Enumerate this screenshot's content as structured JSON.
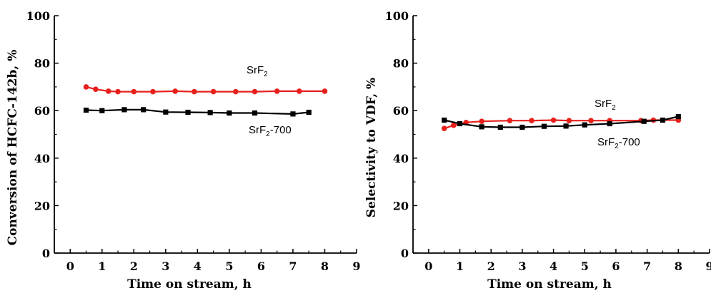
{
  "chart_data": [
    {
      "type": "line",
      "xlabel": "Time on stream, h",
      "ylabel": "Conversion of HCFC-142b, %",
      "xlim": [
        -0.5,
        9
      ],
      "ylim": [
        0,
        100
      ],
      "xticks": [
        "0",
        "1",
        "2",
        "3",
        "4",
        "5",
        "6",
        "7",
        "8",
        "9"
      ],
      "yticks": [
        "0",
        "20",
        "40",
        "60",
        "80",
        "100"
      ],
      "grid": false,
      "series": [
        {
          "name": "SrF2",
          "label_base": "SrF",
          "label_sub": "2",
          "label_tail": "",
          "color": "#e8201c",
          "marker": "circle",
          "x": [
            0.5,
            0.8,
            1.2,
            1.5,
            2.0,
            2.6,
            3.3,
            3.9,
            4.5,
            5.2,
            5.8,
            6.5,
            7.2,
            8.0
          ],
          "y": [
            70.0,
            69.0,
            68.2,
            68.0,
            68.0,
            68.0,
            68.2,
            68.0,
            68.0,
            68.0,
            68.0,
            68.2,
            68.2,
            68.2
          ]
        },
        {
          "name": "SrF2-700",
          "label_base": "SrF",
          "label_sub": "2",
          "label_tail": "-700",
          "color": "#000000",
          "marker": "square",
          "x": [
            0.5,
            1.0,
            1.7,
            2.3,
            3.0,
            3.7,
            4.4,
            5.0,
            5.8,
            7.0,
            7.5
          ],
          "y": [
            60.2,
            60.0,
            60.4,
            60.4,
            59.4,
            59.3,
            59.2,
            59.0,
            59.0,
            58.6,
            59.3
          ]
        }
      ]
    },
    {
      "type": "line",
      "xlabel": "Time on stream, h",
      "ylabel": "Selectivity to VDF, %",
      "xlim": [
        -0.5,
        9
      ],
      "ylim": [
        0,
        100
      ],
      "xticks": [
        "0",
        "1",
        "2",
        "3",
        "4",
        "5",
        "6",
        "7",
        "8",
        "9"
      ],
      "yticks": [
        "0",
        "20",
        "40",
        "60",
        "80",
        "100"
      ],
      "grid": false,
      "series": [
        {
          "name": "SrF2",
          "label_base": "SrF",
          "label_sub": "2",
          "label_tail": "",
          "color": "#e8201c",
          "marker": "circle",
          "x": [
            0.5,
            0.8,
            1.2,
            1.7,
            2.6,
            3.3,
            4.0,
            4.5,
            5.2,
            5.8,
            6.8,
            7.2,
            8.0
          ],
          "y": [
            52.5,
            53.8,
            55.0,
            55.5,
            55.8,
            55.8,
            56.0,
            55.8,
            55.8,
            55.8,
            55.8,
            56.0,
            56.0
          ]
        },
        {
          "name": "SrF2-700",
          "label_base": "SrF",
          "label_sub": "2",
          "label_tail": "-700",
          "color": "#000000",
          "marker": "square",
          "x": [
            0.5,
            1.0,
            1.7,
            2.3,
            3.0,
            3.7,
            4.4,
            5.0,
            5.8,
            6.9,
            7.5,
            8.0
          ],
          "y": [
            56.0,
            54.5,
            53.2,
            53.0,
            53.0,
            53.4,
            53.5,
            54.0,
            54.5,
            55.5,
            56.0,
            57.5
          ]
        }
      ]
    }
  ]
}
